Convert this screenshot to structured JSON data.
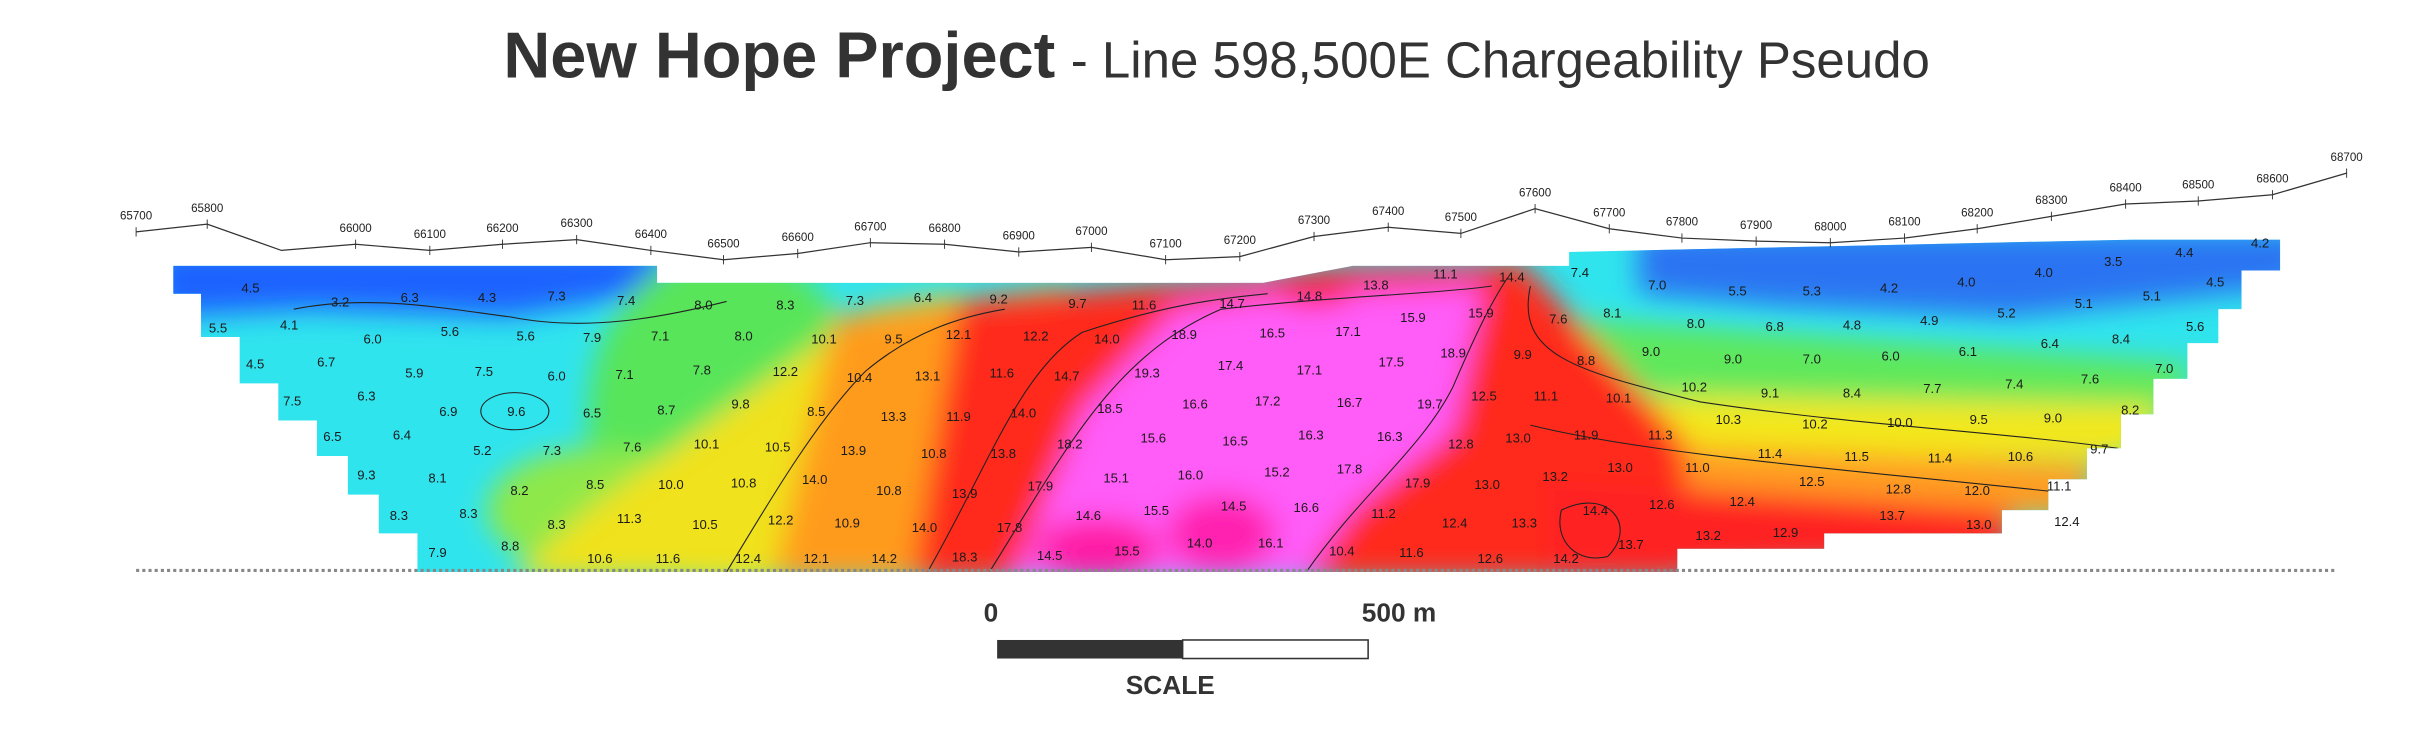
{
  "title": {
    "main": "New Hope Project",
    "sub": "- Line 598,500E Chargeability Pseudo"
  },
  "stations": [
    "65700",
    "65800",
    "66000",
    "66100",
    "66200",
    "66300",
    "66400",
    "66500",
    "66600",
    "66700",
    "66800",
    "66900",
    "67000",
    "67100",
    "67200",
    "67300",
    "67400",
    "67500",
    "67600",
    "67700",
    "67800",
    "67900",
    "68000",
    "68100",
    "68200",
    "68300",
    "68400",
    "68500",
    "68600",
    "68700"
  ],
  "contour_labels": [
    [
      "4.5",
      "3.2",
      "6.3",
      "4.3",
      "7.3",
      "7.4",
      "8.0",
      "8.3",
      "7.3",
      "6.4",
      "9.2",
      "9.7",
      "11.6",
      "14.7",
      "14.8",
      "13.8",
      "11.1",
      "14.4",
      "7.4",
      "7.0",
      "5.5",
      "5.3",
      "4.2",
      "4.0",
      "4.0",
      "3.5",
      "4.4",
      "4.2",
      "4.5"
    ],
    [
      "5.5",
      "4.1",
      "6.0",
      "5.6",
      "5.6",
      "7.9",
      "7.1",
      "8.0",
      "10.1",
      "9.5",
      "12.1",
      "12.2",
      "14.0",
      "18.9",
      "16.5",
      "17.1",
      "15.9",
      "15.9",
      "7.6",
      "8.1",
      "8.0",
      "6.8",
      "4.8",
      "4.9",
      "5.2",
      "5.1",
      "5.1",
      "8.4",
      "5.6"
    ],
    [
      "4.5",
      "6.7",
      "5.9",
      "7.5",
      "6.0",
      "7.1",
      "7.8",
      "12.2",
      "10.4",
      "13.1",
      "11.6",
      "14.7",
      "19.3",
      "17.4",
      "17.1",
      "17.5",
      "18.9",
      "9.9",
      "8.8",
      "9.0",
      "9.0",
      "7.0",
      "6.0",
      "6.1",
      "6.4",
      "7.0"
    ],
    [
      "7.5",
      "6.3",
      "6.9",
      "9.6",
      "6.5",
      "8.7",
      "9.8",
      "8.5",
      "13.3",
      "11.9",
      "14.0",
      "18.5",
      "16.6",
      "17.2",
      "16.7",
      "19.7",
      "12.5",
      "11.1",
      "10.1",
      "10.2",
      "9.1",
      "8.4",
      "7.7",
      "7.4",
      "7.6",
      "8.2"
    ],
    [
      "6.5",
      "6.4",
      "5.2",
      "7.3",
      "7.6",
      "10.1",
      "10.5",
      "13.9",
      "10.8",
      "13.8",
      "18.2",
      "15.6",
      "16.5",
      "16.3",
      "16.3",
      "12.8",
      "13.0",
      "11.9",
      "11.3",
      "10.3",
      "10.2",
      "10.0",
      "9.5",
      "9.0",
      "9.7"
    ],
    [
      "9.3",
      "8.1",
      "8.2",
      "8.5",
      "10.0",
      "10.8",
      "14.0",
      "10.8",
      "13.9",
      "17.9",
      "15.1",
      "16.0",
      "15.2",
      "17.8",
      "17.9",
      "13.0",
      "13.2",
      "13.0",
      "11.0",
      "11.4",
      "11.5",
      "11.4",
      "10.6",
      "12.5",
      "12.8",
      "12.0",
      "11.1"
    ],
    [
      "8.3",
      "8.3",
      "8.3",
      "11.3",
      "10.5",
      "12.2",
      "10.9",
      "14.0",
      "17.8",
      "14.6",
      "15.5",
      "14.5",
      "16.6",
      "11.2",
      "12.4",
      "13.3",
      "14.4",
      "12.6",
      "12.4",
      "13.7",
      "13.0",
      "12.4"
    ],
    [
      "7.9",
      "8.8",
      "10.6",
      "11.6",
      "12.4",
      "12.1",
      "14.2",
      "18.3",
      "14.5",
      "15.5",
      "14.0",
      "16.1",
      "10.4",
      "11.6",
      "12.6",
      "14.2",
      "13.7",
      "13.2",
      "12.9"
    ]
  ],
  "scale": {
    "start": "0",
    "end": "500 m",
    "caption": "SCALE"
  }
}
